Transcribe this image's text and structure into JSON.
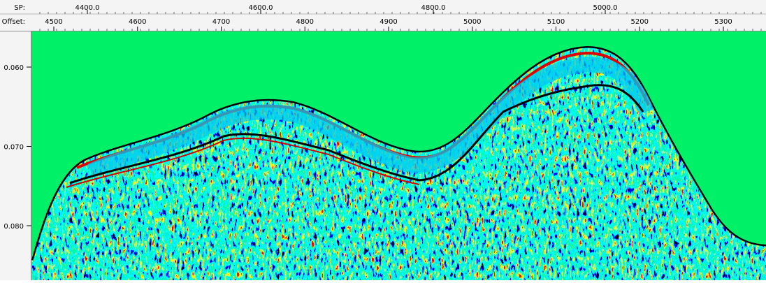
{
  "sp": {
    "label": "SP:",
    "ticks": [
      "4400.0",
      "4600.0",
      "4800.0",
      "5000.0"
    ]
  },
  "offset": {
    "label": "Offset:",
    "ticks": [
      "4500",
      "4600",
      "4700",
      "4800",
      "4900",
      "5000",
      "5100",
      "5200",
      "5300"
    ]
  },
  "time_axis": {
    "ticks": [
      "0.060",
      "0.070",
      "0.080"
    ]
  }
}
